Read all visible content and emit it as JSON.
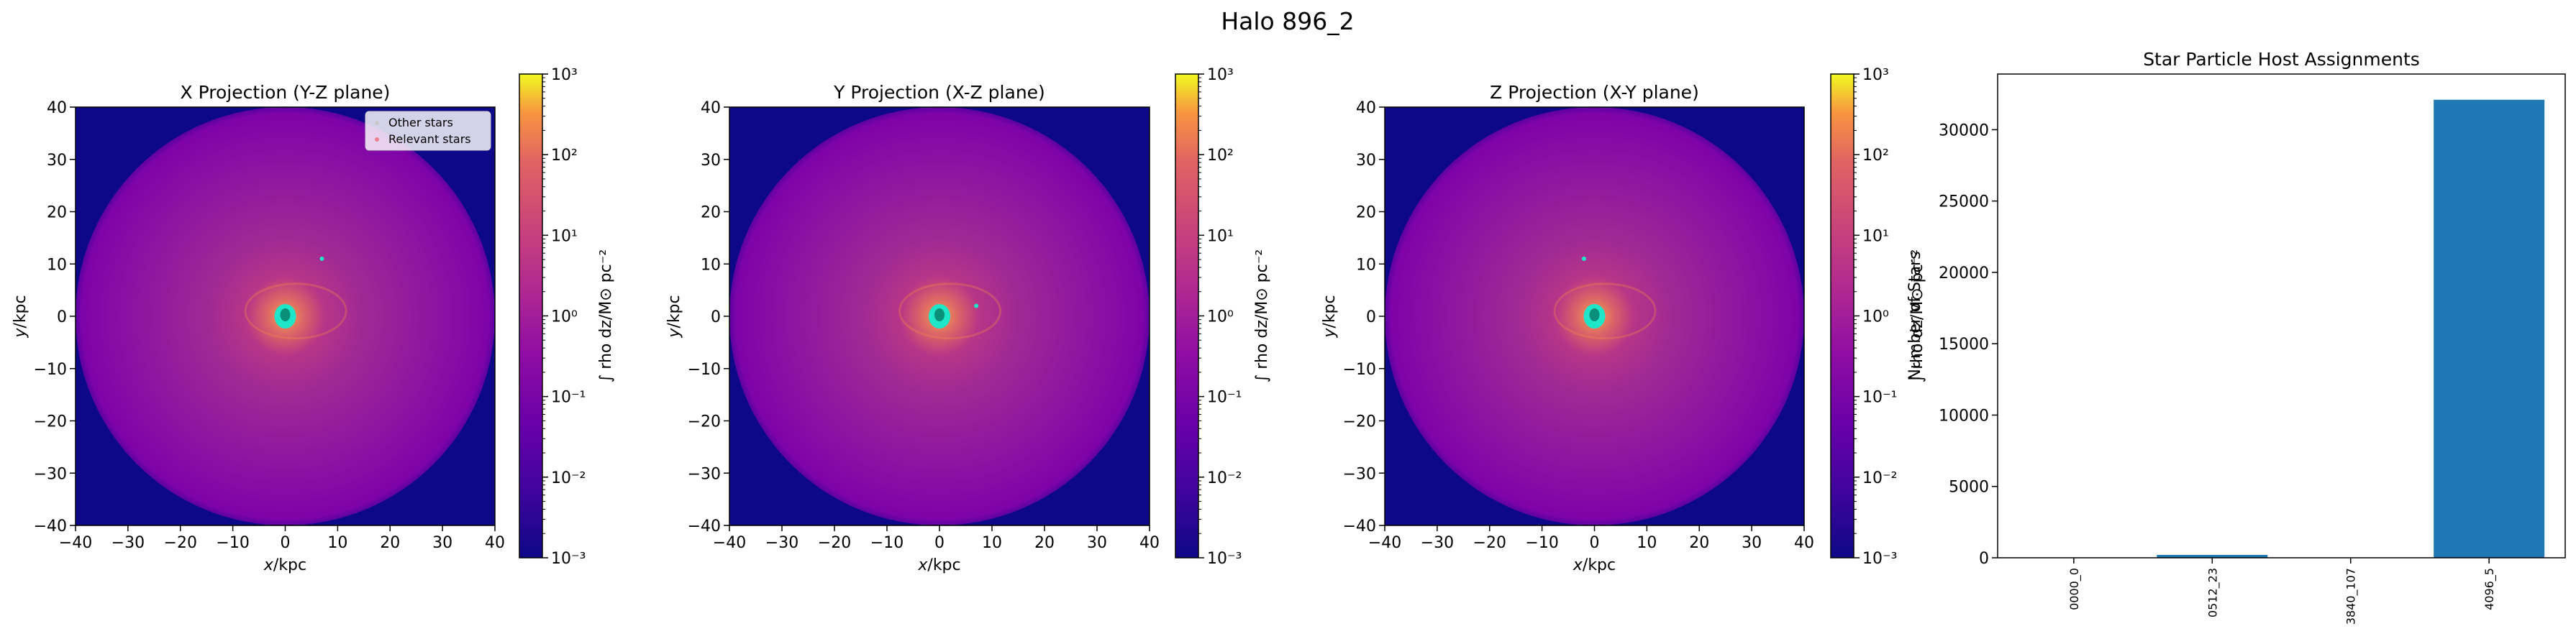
{
  "suptitle": "Halo 896_2",
  "colors": {
    "bg_navy": "#0d0887",
    "halo_inner": "#c43e7f",
    "halo_mid": "#9a2197",
    "halo_outer": "#7e03a8",
    "core_orange": "#f0834b",
    "star_cyan": "#1ee6c8",
    "star_core": "#0a8f7a",
    "bar_blue": "#1f77b4"
  },
  "legend": {
    "other": "Other stars",
    "relevant": "Relevant stars"
  },
  "colorbar": {
    "label": "∫ rho dz/M⊙ pc⁻²",
    "ticks": [
      "10³",
      "10²",
      "10¹",
      "10⁰",
      "10⁻¹",
      "10⁻²",
      "10⁻³"
    ]
  },
  "chart_data": [
    {
      "type": "heatmap",
      "title": "X Projection (Y-Z plane)",
      "xlabel": "x/kpc",
      "ylabel": "y/kpc",
      "xlim": [
        -40,
        40
      ],
      "ylim": [
        -40,
        40
      ],
      "xticks": [
        -40,
        -30,
        -20,
        -10,
        0,
        10,
        20,
        30,
        40
      ],
      "yticks": [
        40,
        30,
        20,
        10,
        0,
        -10,
        -20,
        -30,
        -40
      ],
      "halo_radius_kpc": 40,
      "core_kpc": [
        0,
        0
      ],
      "satellite_kpc": [
        7,
        11
      ],
      "legend": "top-right",
      "color_scale": "log",
      "clim": [
        0.001,
        1000
      ]
    },
    {
      "type": "heatmap",
      "title": "Y Projection (X-Z plane)",
      "xlabel": "x/kpc",
      "ylabel": "y/kpc",
      "xlim": [
        -40,
        40
      ],
      "ylim": [
        -40,
        40
      ],
      "xticks": [
        -40,
        -30,
        -20,
        -10,
        0,
        10,
        20,
        30,
        40
      ],
      "yticks": [
        40,
        30,
        20,
        10,
        0,
        -10,
        -20,
        -30,
        -40
      ],
      "halo_radius_kpc": 40,
      "core_kpc": [
        0,
        0
      ],
      "satellite_kpc": [
        7,
        2
      ],
      "color_scale": "log",
      "clim": [
        0.001,
        1000
      ]
    },
    {
      "type": "heatmap",
      "title": "Z Projection (X-Y plane)",
      "xlabel": "x/kpc",
      "ylabel": "y/kpc",
      "xlim": [
        -40,
        40
      ],
      "ylim": [
        -40,
        40
      ],
      "xticks": [
        -40,
        -30,
        -20,
        -10,
        0,
        10,
        20,
        30,
        40
      ],
      "yticks": [
        40,
        30,
        20,
        10,
        0,
        -10,
        -20,
        -30,
        -40
      ],
      "halo_radius_kpc": 40,
      "core_kpc": [
        0,
        0
      ],
      "satellite_kpc": [
        -2,
        11
      ],
      "color_scale": "log",
      "clim": [
        0.001,
        1000
      ]
    },
    {
      "type": "bar",
      "title": "Star Particle Host Assignments",
      "xlabel": "",
      "ylabel": "Number of Stars",
      "categories": [
        "0000_0",
        "0512_23",
        "3840_107",
        "4096_5"
      ],
      "values": [
        20,
        200,
        15,
        32100
      ],
      "ylim": [
        0,
        33900
      ],
      "yticks": [
        0,
        5000,
        10000,
        15000,
        20000,
        25000,
        30000
      ],
      "ytick_labels": [
        "0",
        "5000",
        "10000",
        "15000",
        "20000",
        "25000",
        "30000"
      ]
    }
  ]
}
